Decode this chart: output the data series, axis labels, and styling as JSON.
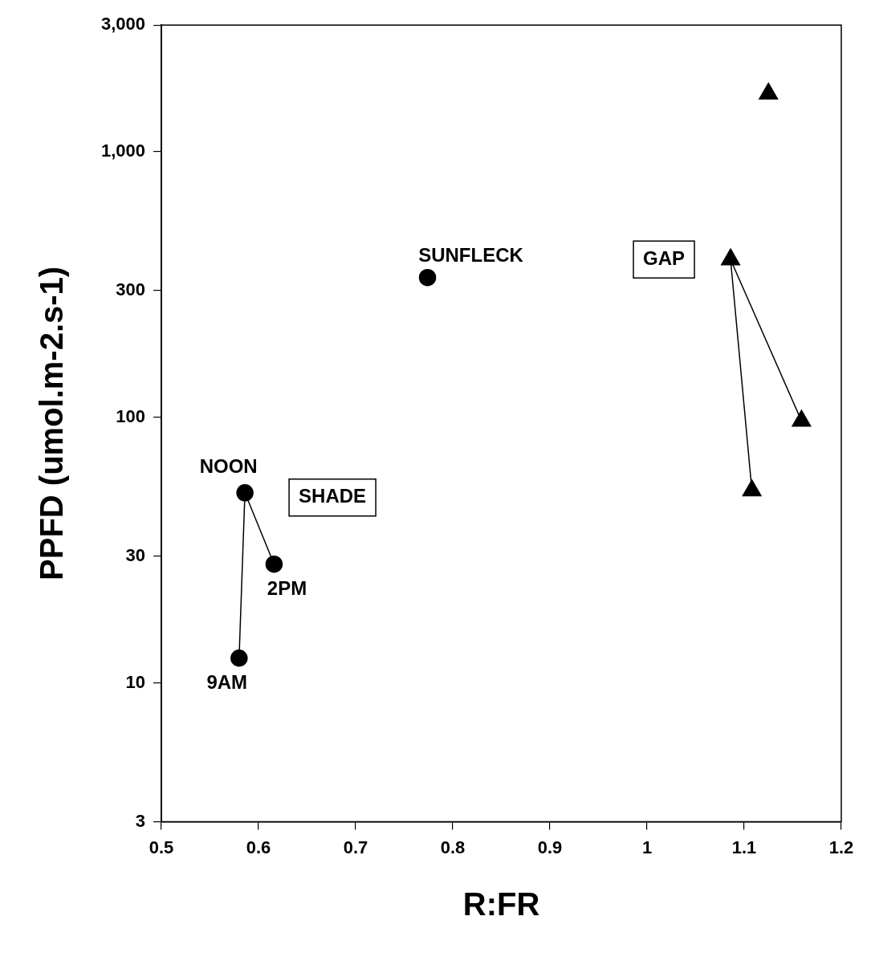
{
  "chart_data": {
    "type": "scatter",
    "xlabel": "R:FR",
    "ylabel": "PPFD (umol.m-2.s-1)",
    "xlim": [
      0.5,
      1.2
    ],
    "xticks": [
      0.5,
      0.6,
      0.7,
      0.8,
      0.9,
      1,
      1.1,
      1.2
    ],
    "ylim": [
      3,
      3000
    ],
    "yticks": [
      3,
      10,
      30,
      100,
      300,
      {
        "value": 1000,
        "label": "1,000"
      },
      {
        "value": 3000,
        "label": "3,000"
      }
    ],
    "log": "y",
    "grid": false,
    "legend": false,
    "series": [
      {
        "name": "SHADE",
        "type": "line",
        "marker": "circle",
        "color": "#000000",
        "x": [
          0.58,
          0.586,
          0.616
        ],
        "values": [
          12.4,
          52,
          28
        ]
      },
      {
        "type": "scatter",
        "marker": "circle",
        "color": "#000000",
        "x": [
          0.774
        ],
        "values": [
          336
        ]
      },
      {
        "name": "GAP",
        "type": "line",
        "marker": "triangle",
        "color": "#000000",
        "x": [
          1.159,
          1.086,
          1.108
        ],
        "values": [
          97,
          393,
          53
        ]
      },
      {
        "type": "scatter",
        "marker": "triangle",
        "color": "#000000",
        "x": [
          1.125
        ],
        "values": [
          1655
        ]
      }
    ],
    "annotations": [
      {
        "text": "SUNFLECK",
        "x": 0.774,
        "y": 336
      },
      {
        "text": "NOON",
        "x": 0.586,
        "y": 52
      },
      {
        "text": "2PM",
        "x": 0.616,
        "y": 28
      },
      {
        "text": "9AM",
        "x": 0.58,
        "y": 12.4
      }
    ]
  }
}
